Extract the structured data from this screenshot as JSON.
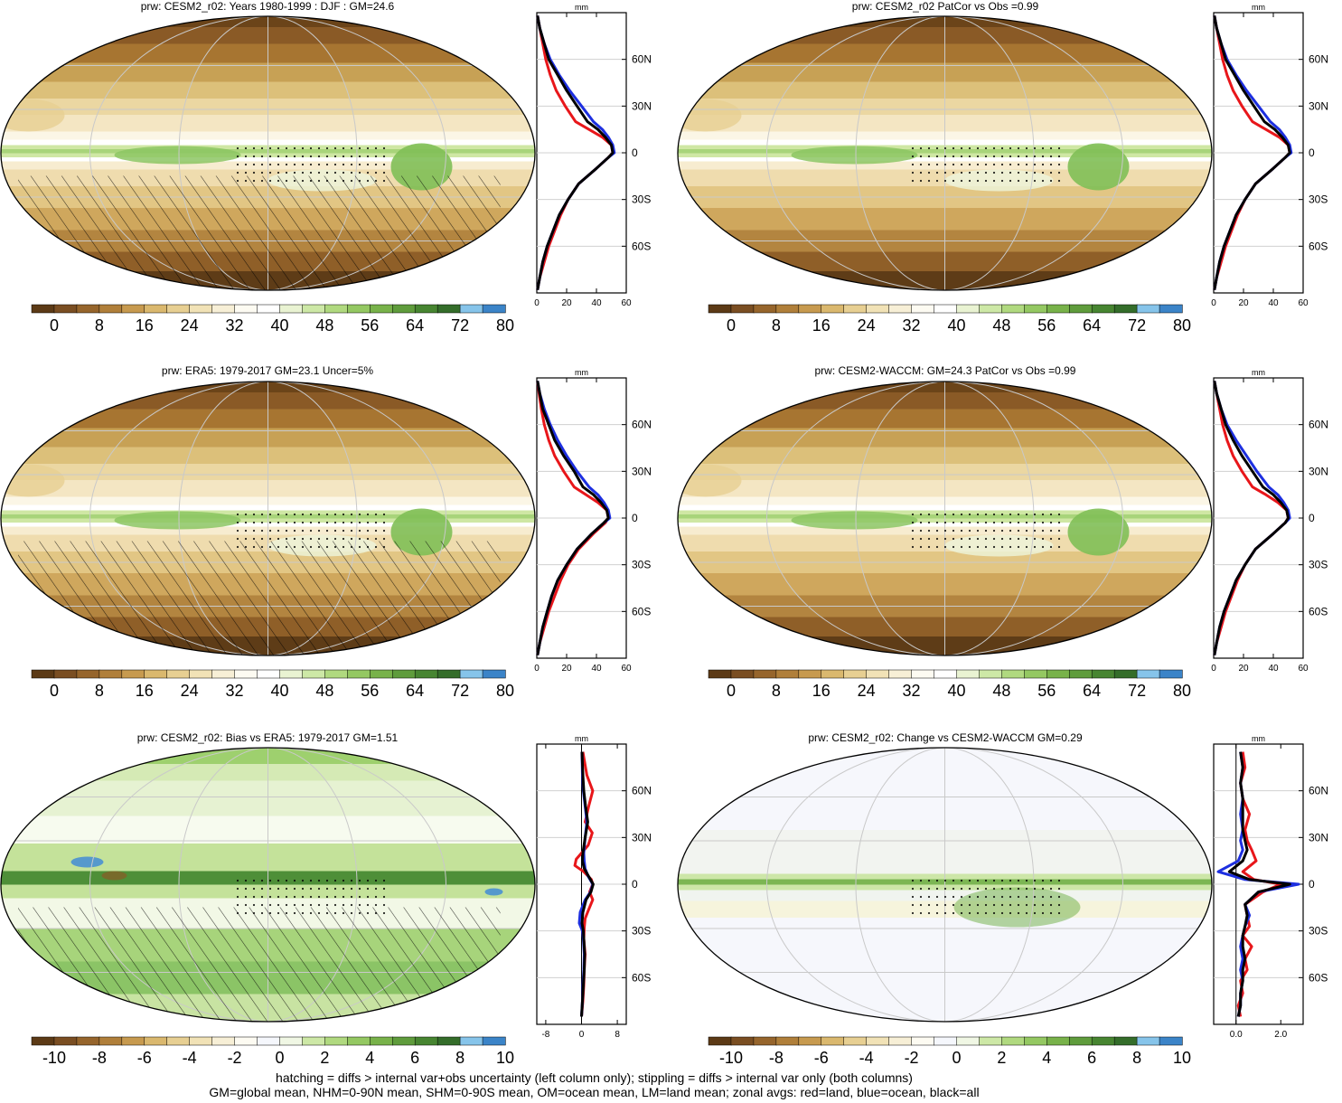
{
  "panels": [
    {
      "title": "prw: CESM2_r02: Years 1980-1999 : DJF : GM=24.6",
      "colorbar": "abs",
      "hatch": true,
      "stipple": true
    },
    {
      "title": "prw: CESM2_r02 PatCor vs Obs =0.99",
      "colorbar": "abs",
      "hatch": false,
      "stipple": true
    },
    {
      "title": "prw: ERA5: 1979-2017 GM=23.1 Uncer=5%",
      "colorbar": "abs",
      "hatch": true,
      "stipple": true
    },
    {
      "title": "prw: CESM2-WACCM: GM=24.3 PatCor vs Obs =0.99",
      "colorbar": "abs",
      "hatch": false,
      "stipple": true
    },
    {
      "title": "prw: CESM2_r02: Bias vs ERA5: 1979-2017 GM=1.51",
      "colorbar": "diff",
      "hatch": true,
      "stipple": true
    },
    {
      "title": "prw: CESM2_r02: Change vs CESM2-WACCM GM=0.29",
      "colorbar": "diff",
      "hatch": false,
      "stipple": true
    }
  ],
  "colorbars": {
    "abs": {
      "labels": [
        "0",
        "8",
        "16",
        "24",
        "32",
        "40",
        "48",
        "56",
        "64",
        "72",
        "80"
      ],
      "colors": [
        "#5c3a16",
        "#7a4e22",
        "#96652c",
        "#b07f3a",
        "#c79a4f",
        "#dab86e",
        "#e7cf92",
        "#f1e2b6",
        "#f7efd6",
        "#fdfbf2",
        "#ffffff",
        "#e9f3d2",
        "#cde8a6",
        "#b0d97f",
        "#94c862",
        "#78b24a",
        "#5f9c3c",
        "#478531",
        "#346d2a",
        "#86c4ea",
        "#3b84c8"
      ]
    },
    "diff": {
      "labels": [
        "-10",
        "-8",
        "-6",
        "-4",
        "-2",
        "0",
        "2",
        "4",
        "6",
        "8",
        "10"
      ],
      "colors": [
        "#5c3a16",
        "#7a4e22",
        "#96652c",
        "#b07f3a",
        "#c79a4f",
        "#dab86e",
        "#e7cf92",
        "#f1e2b6",
        "#f7efd6",
        "#fdfbf2",
        "#f5f7fc",
        "#f0f7e4",
        "#cde8a6",
        "#b0d97f",
        "#94c862",
        "#78b24a",
        "#5f9c3c",
        "#478531",
        "#346d2a",
        "#86c4ea",
        "#3b84c8"
      ]
    }
  },
  "chart_data": [
    {
      "type": "line",
      "title": "mm",
      "panel": 1,
      "ytick_labels": [
        "60N",
        "30N",
        "0",
        "30S",
        "60S"
      ],
      "xtick_labels": [
        "0",
        "20",
        "40",
        "60"
      ],
      "xlim": [
        0,
        60
      ],
      "ylim": [
        -90,
        90
      ],
      "series": [
        {
          "color": "#e8161a",
          "x": [
            0.5,
            2,
            5,
            8,
            12,
            16,
            21,
            28,
            40,
            48,
            51,
            50,
            44,
            35,
            26,
            19,
            13,
            9,
            6,
            4,
            2,
            0.5
          ],
          "y": [
            -88,
            -80,
            -70,
            -60,
            -50,
            -40,
            -30,
            -20,
            -10,
            -3,
            0,
            5,
            10,
            15,
            20,
            30,
            40,
            50,
            60,
            70,
            80,
            88
          ]
        },
        {
          "color": "#1d2fe0",
          "x": [
            0.5,
            2,
            4,
            7,
            11,
            15,
            21,
            28,
            40,
            48,
            52,
            51,
            48,
            44,
            38,
            30,
            22,
            15,
            9,
            5,
            2,
            0.5
          ],
          "y": [
            -88,
            -80,
            -70,
            -60,
            -50,
            -40,
            -30,
            -20,
            -10,
            -3,
            0,
            5,
            10,
            15,
            20,
            30,
            40,
            50,
            60,
            70,
            80,
            88
          ]
        },
        {
          "color": "#000000",
          "x": [
            0.5,
            2,
            4,
            7,
            11,
            15,
            21,
            28,
            40,
            48,
            51,
            50,
            46,
            41,
            34,
            27,
            20,
            14,
            8,
            5,
            2,
            0.5
          ],
          "y": [
            -88,
            -80,
            -70,
            -60,
            -50,
            -40,
            -30,
            -20,
            -10,
            -3,
            0,
            5,
            10,
            15,
            20,
            30,
            40,
            50,
            60,
            70,
            80,
            88
          ]
        }
      ]
    },
    {
      "type": "line",
      "title": "mm",
      "panel": 2,
      "ytick_labels": [
        "60N",
        "30N",
        "0",
        "30S",
        "60S"
      ],
      "xtick_labels": [
        "0",
        "20",
        "40",
        "60"
      ],
      "xlim": [
        0,
        60
      ],
      "ylim": [
        -90,
        90
      ],
      "series": [
        {
          "color": "#e8161a",
          "x": [
            0.5,
            2,
            5,
            8,
            12,
            16,
            21,
            28,
            40,
            48,
            51,
            50,
            44,
            35,
            26,
            19,
            13,
            9,
            6,
            4,
            2,
            0.5
          ],
          "y": [
            -88,
            -80,
            -70,
            -60,
            -50,
            -40,
            -30,
            -20,
            -10,
            -3,
            0,
            5,
            10,
            15,
            20,
            30,
            40,
            50,
            60,
            70,
            80,
            88
          ]
        },
        {
          "color": "#1d2fe0",
          "x": [
            0.5,
            2,
            4,
            7,
            11,
            15,
            21,
            28,
            40,
            48,
            52,
            51,
            48,
            44,
            38,
            30,
            22,
            15,
            9,
            5,
            2,
            0.5
          ],
          "y": [
            -88,
            -80,
            -70,
            -60,
            -50,
            -40,
            -30,
            -20,
            -10,
            -3,
            0,
            5,
            10,
            15,
            20,
            30,
            40,
            50,
            60,
            70,
            80,
            88
          ]
        },
        {
          "color": "#000000",
          "x": [
            0.5,
            2,
            4,
            7,
            11,
            15,
            21,
            28,
            40,
            48,
            51,
            50,
            46,
            41,
            34,
            27,
            20,
            14,
            8,
            5,
            2,
            0.5
          ],
          "y": [
            -88,
            -80,
            -70,
            -60,
            -50,
            -40,
            -30,
            -20,
            -10,
            -3,
            0,
            5,
            10,
            15,
            20,
            30,
            40,
            50,
            60,
            70,
            80,
            88
          ]
        }
      ]
    },
    {
      "type": "line",
      "title": "mm",
      "panel": 3,
      "ytick_labels": [
        "60N",
        "30N",
        "0",
        "30S",
        "60S"
      ],
      "xtick_labels": [
        "0",
        "20",
        "40",
        "60"
      ],
      "xlim": [
        0,
        60
      ],
      "ylim": [
        -90,
        90
      ],
      "series": [
        {
          "color": "#e8161a",
          "x": [
            0.5,
            2,
            5,
            8,
            12,
            16,
            21,
            28,
            38,
            46,
            48,
            47,
            41,
            33,
            25,
            18,
            12,
            8,
            5,
            3,
            1.5,
            0.5
          ],
          "y": [
            -88,
            -80,
            -70,
            -60,
            -50,
            -40,
            -30,
            -20,
            -10,
            -3,
            0,
            5,
            10,
            15,
            20,
            30,
            40,
            50,
            60,
            70,
            80,
            88
          ]
        },
        {
          "color": "#1d2fe0",
          "x": [
            0.5,
            2,
            4,
            7,
            10,
            14,
            20,
            27,
            37,
            45,
            49,
            48,
            45,
            41,
            35,
            27,
            20,
            14,
            9,
            5,
            2,
            0.5
          ],
          "y": [
            -88,
            -80,
            -70,
            -60,
            -50,
            -40,
            -30,
            -20,
            -10,
            -3,
            0,
            5,
            10,
            15,
            20,
            30,
            40,
            50,
            60,
            70,
            80,
            88
          ]
        },
        {
          "color": "#000000",
          "x": [
            0.5,
            2,
            4,
            7,
            10,
            14,
            20,
            27,
            37,
            45,
            48,
            47,
            43,
            38,
            31,
            25,
            18,
            12,
            8,
            4,
            2,
            0.5
          ],
          "y": [
            -88,
            -80,
            -70,
            -60,
            -50,
            -40,
            -30,
            -20,
            -10,
            -3,
            0,
            5,
            10,
            15,
            20,
            30,
            40,
            50,
            60,
            70,
            80,
            88
          ]
        }
      ]
    },
    {
      "type": "line",
      "title": "mm",
      "panel": 4,
      "ytick_labels": [
        "60N",
        "30N",
        "0",
        "30S",
        "60S"
      ],
      "xtick_labels": [
        "0",
        "20",
        "40",
        "60"
      ],
      "xlim": [
        0,
        60
      ],
      "ylim": [
        -90,
        90
      ],
      "series": [
        {
          "color": "#e8161a",
          "x": [
            0.5,
            2,
            5,
            8,
            12,
            16,
            21,
            28,
            40,
            48,
            50,
            49,
            43,
            35,
            26,
            19,
            13,
            9,
            6,
            4,
            2,
            0.5
          ],
          "y": [
            -88,
            -80,
            -70,
            -60,
            -50,
            -40,
            -30,
            -20,
            -10,
            -3,
            0,
            5,
            10,
            15,
            20,
            30,
            40,
            50,
            60,
            70,
            80,
            88
          ]
        },
        {
          "color": "#1d2fe0",
          "x": [
            0.5,
            2,
            4,
            7,
            11,
            15,
            21,
            28,
            40,
            48,
            51,
            50,
            47,
            43,
            37,
            29,
            22,
            15,
            9,
            5,
            2,
            0.5
          ],
          "y": [
            -88,
            -80,
            -70,
            -60,
            -50,
            -40,
            -30,
            -20,
            -10,
            -3,
            0,
            5,
            10,
            15,
            20,
            30,
            40,
            50,
            60,
            70,
            80,
            88
          ]
        },
        {
          "color": "#000000",
          "x": [
            0.5,
            2,
            4,
            7,
            11,
            15,
            21,
            28,
            40,
            48,
            50,
            49,
            45,
            40,
            33,
            26,
            19,
            13,
            8,
            5,
            2,
            0.5
          ],
          "y": [
            -88,
            -80,
            -70,
            -60,
            -50,
            -40,
            -30,
            -20,
            -10,
            -3,
            0,
            5,
            10,
            15,
            20,
            30,
            40,
            50,
            60,
            70,
            80,
            88
          ]
        }
      ]
    },
    {
      "type": "line",
      "title": "mm",
      "panel": 5,
      "ytick_labels": [
        "60N",
        "30N",
        "0",
        "30S",
        "60S"
      ],
      "xtick_labels": [
        "-8",
        "0",
        "8"
      ],
      "xlim": [
        -10,
        10
      ],
      "ylim": [
        -90,
        90
      ],
      "series": [
        {
          "color": "#e8161a",
          "x": [
            0,
            0.3,
            0.5,
            0.6,
            0.8,
            0.5,
            0.6,
            0.8,
            1.5,
            2.5,
            1.8,
            2.5,
            2.2,
            0.5,
            -1.5,
            -1.2,
            1.5,
            2.4,
            0.8,
            1.6,
            2.5,
            1.2,
            0.3
          ],
          "y": [
            -85,
            -75,
            -65,
            -55,
            -45,
            -35,
            -28,
            -22,
            -17,
            -10,
            -5,
            0,
            3,
            8,
            12,
            16,
            25,
            33,
            40,
            50,
            60,
            70,
            85
          ]
        },
        {
          "color": "#1d2fe0",
          "x": [
            0,
            0.2,
            0.3,
            0.5,
            0.6,
            0.4,
            0.2,
            -0.5,
            -0.3,
            0.8,
            2.0,
            2.5,
            1.5,
            0.8,
            0.6,
            0.5,
            0.8,
            1.2,
            0.8,
            0.4,
            0.2,
            0.1
          ],
          "y": [
            -85,
            -75,
            -65,
            -55,
            -45,
            -35,
            -30,
            -25,
            -18,
            -10,
            -5,
            0,
            5,
            10,
            15,
            20,
            30,
            40,
            50,
            60,
            70,
            85
          ]
        },
        {
          "color": "#000000",
          "x": [
            0,
            0.2,
            0.4,
            0.6,
            0.7,
            0.5,
            0.4,
            0.1,
            0.3,
            1.0,
            2.1,
            2.6,
            1.6,
            0.6,
            0.2,
            0.3,
            0.8,
            1.4,
            0.9,
            0.5,
            0.3,
            0.1
          ],
          "y": [
            -85,
            -75,
            -65,
            -55,
            -45,
            -35,
            -30,
            -25,
            -18,
            -10,
            -5,
            0,
            5,
            10,
            15,
            20,
            30,
            40,
            50,
            60,
            70,
            85
          ]
        }
      ]
    },
    {
      "type": "line",
      "title": "mm",
      "panel": 6,
      "ytick_labels": [
        "60N",
        "30N",
        "0",
        "30S",
        "60S"
      ],
      "xtick_labels": [
        "0.0",
        "2.0"
      ],
      "xlim": [
        -1,
        3
      ],
      "ylim": [
        -90,
        90
      ],
      "series": [
        {
          "color": "#e8161a",
          "x": [
            0.2,
            0.1,
            0.3,
            0.2,
            0.5,
            0.4,
            0.7,
            0.3,
            0.6,
            0.5,
            0.4,
            1.2,
            2.0,
            0.8,
            0.3,
            0.9,
            0.7,
            0.5,
            0.4,
            0.6,
            0.3,
            0.2,
            0.4,
            0.3
          ],
          "y": [
            -85,
            -78,
            -70,
            -62,
            -55,
            -48,
            -40,
            -33,
            -27,
            -20,
            -13,
            -5,
            0,
            3,
            8,
            15,
            22,
            28,
            35,
            45,
            55,
            65,
            75,
            85
          ]
        },
        {
          "color": "#1d2fe0",
          "x": [
            0.1,
            0.2,
            0.2,
            0.3,
            0.2,
            0.3,
            0.2,
            0.3,
            0.4,
            0.6,
            0.4,
            1.0,
            2.8,
            0.4,
            -0.8,
            0.1,
            0.3,
            0.2,
            0.3,
            0.2,
            0.3,
            0.2,
            0.3,
            0.2
          ],
          "y": [
            -85,
            -78,
            -70,
            -62,
            -55,
            -48,
            -40,
            -33,
            -27,
            -20,
            -13,
            -5,
            0,
            3,
            8,
            15,
            22,
            28,
            35,
            45,
            55,
            65,
            75,
            85
          ]
        },
        {
          "color": "#000000",
          "x": [
            0.1,
            0.2,
            0.2,
            0.3,
            0.3,
            0.4,
            0.3,
            0.3,
            0.4,
            0.5,
            0.4,
            1.0,
            2.4,
            0.6,
            -0.3,
            0.3,
            0.5,
            0.4,
            0.3,
            0.3,
            0.3,
            0.2,
            0.3,
            0.2
          ],
          "y": [
            -85,
            -78,
            -70,
            -62,
            -55,
            -48,
            -40,
            -33,
            -27,
            -20,
            -13,
            -5,
            0,
            3,
            8,
            15,
            22,
            28,
            35,
            45,
            55,
            65,
            75,
            85
          ]
        }
      ]
    }
  ],
  "footer": {
    "line1": "hatching = diffs > internal var+obs uncertainty (left column only); stippling = diffs > internal var only (both columns)",
    "line2": "GM=global mean, NHM=0-90N mean, SHM=0-90S mean, OM=ocean mean, LM=land mean; zonal avgs: red=land, blue=ocean, black=all"
  }
}
